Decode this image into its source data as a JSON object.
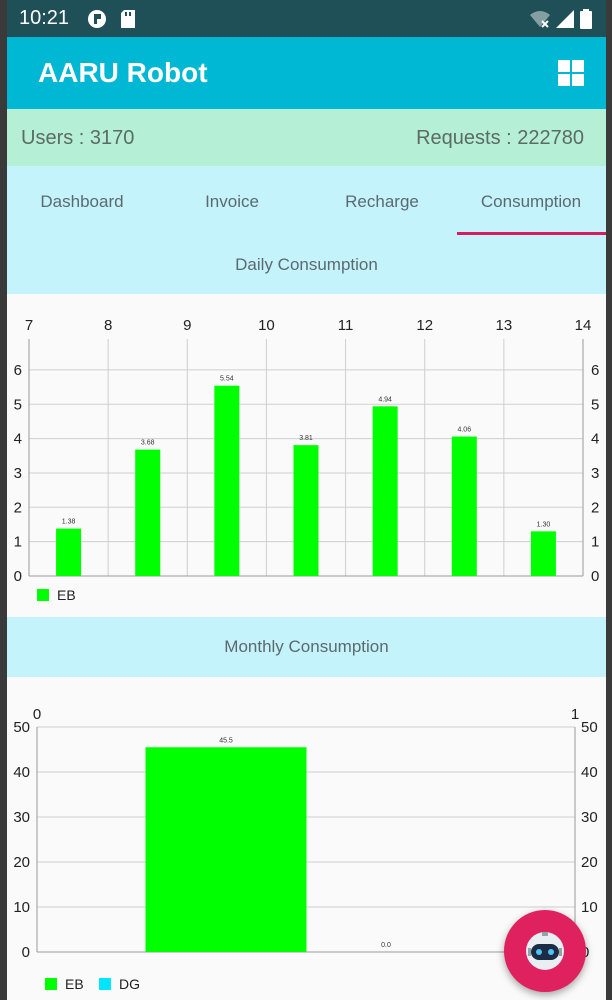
{
  "status_bar": {
    "time": "10:21"
  },
  "app_bar": {
    "title": "AARU Robot",
    "menu_icon": "grid-icon"
  },
  "stats": {
    "users": "Users : 3170",
    "requests": "Requests : 222780"
  },
  "tabs": [
    {
      "label": "Dashboard",
      "active": false
    },
    {
      "label": "Invoice",
      "active": false
    },
    {
      "label": "Recharge",
      "active": false
    },
    {
      "label": "Consumption",
      "active": true
    }
  ],
  "sections": {
    "daily_title": "Daily Consumption",
    "monthly_title": "Monthly Consumption"
  },
  "colors": {
    "appbar": "#00b8d4",
    "accent": "#d81b60",
    "eb": "#00ff00",
    "dg": "#00e5ff"
  },
  "fab": {
    "icon": "robot-icon"
  },
  "chart_data": [
    {
      "type": "bar",
      "title": "Daily Consumption",
      "x_ticks": [
        "7",
        "8",
        "9",
        "10",
        "11",
        "12",
        "13",
        "14"
      ],
      "xlim": [
        7,
        14
      ],
      "ylim": [
        0,
        6.9
      ],
      "y_ticks": [
        "0",
        "1",
        "2",
        "3",
        "4",
        "5",
        "6"
      ],
      "grid": true,
      "legend_position": "bottom-left",
      "series": [
        {
          "name": "EB",
          "points": [
            {
              "x": 7.5,
              "y": 1.38,
              "label": "1.38"
            },
            {
              "x": 8.5,
              "y": 3.68,
              "label": "3.68"
            },
            {
              "x": 9.5,
              "y": 5.54,
              "label": "5.54"
            },
            {
              "x": 10.5,
              "y": 3.81,
              "label": "3.81"
            },
            {
              "x": 11.5,
              "y": 4.94,
              "label": "4.94"
            },
            {
              "x": 12.5,
              "y": 4.06,
              "label": "4.06"
            },
            {
              "x": 13.5,
              "y": 1.3,
              "label": "1.30"
            }
          ]
        }
      ]
    },
    {
      "type": "bar",
      "title": "Monthly Consumption",
      "x_ticks": [
        "0",
        "1"
      ],
      "xlim": [
        0,
        1
      ],
      "ylim": [
        0,
        50
      ],
      "y_ticks": [
        "0",
        "10",
        "20",
        "30",
        "40",
        "50"
      ],
      "grid": true,
      "legend_position": "bottom-left",
      "series": [
        {
          "name": "EB",
          "points": [
            {
              "x": 0.5,
              "y": 45.5,
              "label": "45.5"
            }
          ]
        },
        {
          "name": "DG",
          "points": [
            {
              "x": 0.5,
              "y": 0.0,
              "label": "0.0"
            }
          ]
        }
      ]
    }
  ]
}
